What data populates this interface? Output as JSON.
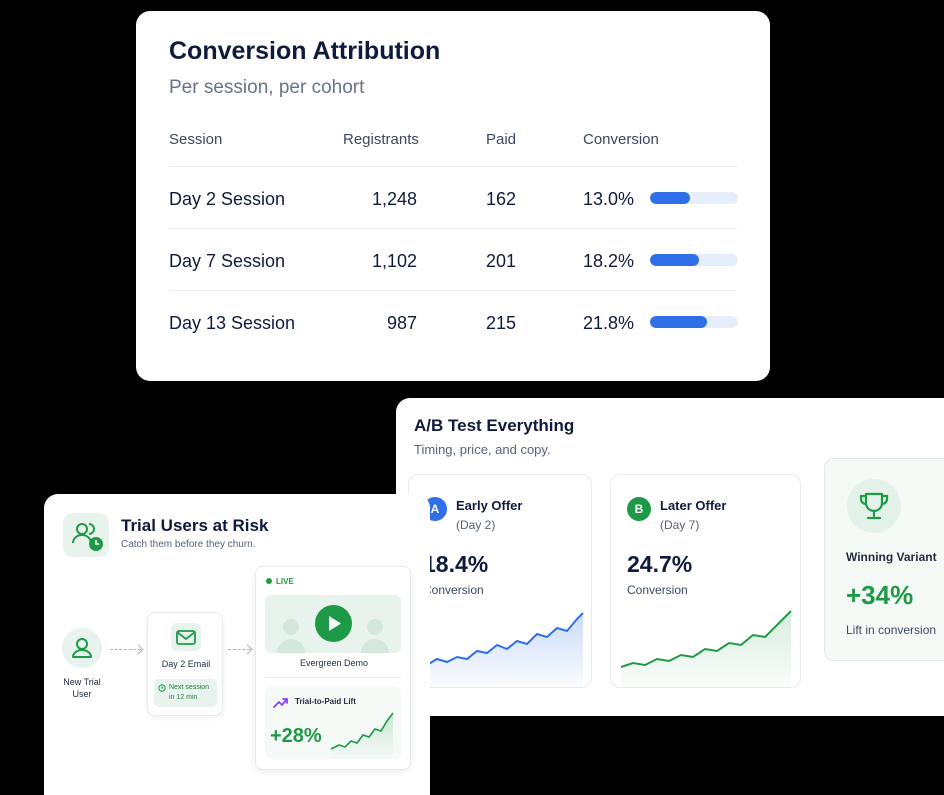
{
  "attribution": {
    "title": "Conversion Attribution",
    "subtitle": "Per session, per cohort",
    "columns": [
      "Session",
      "Registrants",
      "Paid",
      "Conversion"
    ],
    "rows": [
      {
        "session": "Day 2 Session",
        "registrants": "1,248",
        "paid": "162",
        "conversion": "13.0%",
        "fill": 0.46
      },
      {
        "session": "Day 7 Session",
        "registrants": "1,102",
        "paid": "201",
        "conversion": "18.2%",
        "fill": 0.56
      },
      {
        "session": "Day 13 Session",
        "registrants": "987",
        "paid": "215",
        "conversion": "21.8%",
        "fill": 0.65
      }
    ],
    "bar_color": "#2f6fe8"
  },
  "ab_test": {
    "title": "A/B Test Everything",
    "subtitle": "Timing, price, and copy.",
    "variants": [
      {
        "badge": "A",
        "name": "Early Offer",
        "sub": "(Day 2)",
        "pct": "18.4%",
        "label": "Conversion",
        "color": "#2f6fe8"
      },
      {
        "badge": "B",
        "name": "Later Offer",
        "sub": "(Day 7)",
        "pct": "24.7%",
        "label": "Conversion",
        "color": "#1e9a46"
      }
    ],
    "winner": {
      "label": "Winning Variant",
      "pct": "+34%",
      "sub": "Lift in conversion"
    }
  },
  "risk": {
    "title": "Trial Users at Risk",
    "subtitle": "Catch them before they churn.",
    "user_label": "New Trial User",
    "email_label": "Day 2 Email",
    "next_session": "Next session in 12 min",
    "live": "LIVE",
    "demo_label": "Evergreen Demo",
    "lift_title": "Trial-to-Paid Lift",
    "lift_pct": "+28%",
    "accent": "#1e9a46"
  }
}
